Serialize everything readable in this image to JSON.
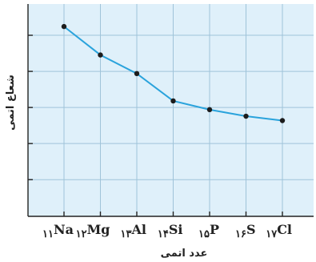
{
  "chart_data": {
    "type": "line",
    "xlabel": "عدد اتمی",
    "ylabel": "شعاع اتمی",
    "categories": [
      {
        "number": "۱۱",
        "symbol": "Na"
      },
      {
        "number": "۱۲",
        "symbol": "Mg"
      },
      {
        "number": "۱۳",
        "symbol": "Al"
      },
      {
        "number": "۱۴",
        "symbol": "Si"
      },
      {
        "number": "۱۵",
        "symbol": "P"
      },
      {
        "number": "۱۶",
        "symbol": "S"
      },
      {
        "number": "۱۷",
        "symbol": "Cl"
      }
    ],
    "x": [
      11,
      12,
      13,
      14,
      15,
      16,
      17
    ],
    "values": [
      186,
      160,
      143,
      118,
      110,
      104,
      100
    ],
    "ylim": [
      40,
      220
    ],
    "grid": true,
    "colors": {
      "plot_background": "#dff0fa",
      "grid": "#9fc3d9",
      "line": "#2aa3dc",
      "marker": "#1c1c1c",
      "axis": "#222222"
    }
  }
}
